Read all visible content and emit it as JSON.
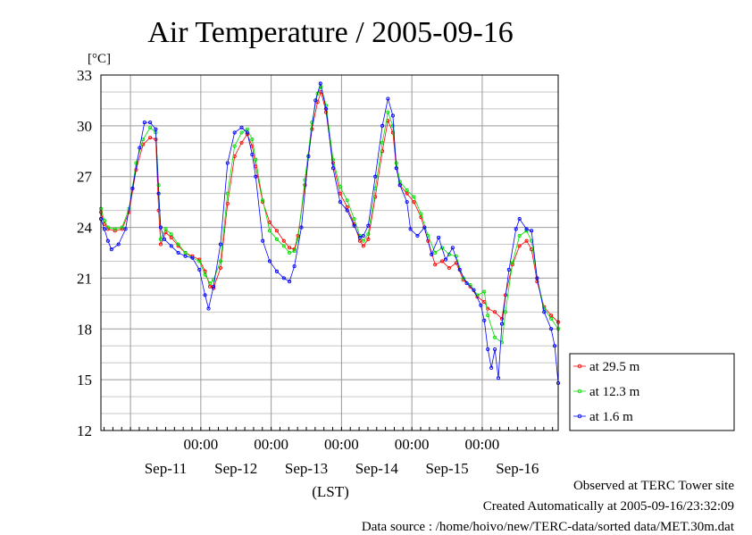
{
  "chart_data": {
    "type": "line",
    "title": "Air Temperature / 2005-09-16",
    "y_unit": "[°C]",
    "xlabel": "(LST)",
    "ylim": [
      12,
      33
    ],
    "yticks": [
      12,
      15,
      18,
      21,
      24,
      27,
      30,
      33
    ],
    "time_ticks": [
      "00:00",
      "00:00",
      "00:00",
      "00:00",
      "00:00"
    ],
    "date_labels": [
      "Sep-11",
      "Sep-12",
      "Sep-13",
      "Sep-14",
      "Sep-15",
      "Sep-16"
    ],
    "grid": true,
    "legend_position": "right",
    "x_unit": "days from start of window (start = 2005-09-10 ~14:00 LST)",
    "series": [
      {
        "name": "at 29.5 m",
        "color": "#ff0000",
        "points": [
          [
            0,
            24.9
          ],
          [
            0.05,
            24.2
          ],
          [
            0.1,
            23.9
          ],
          [
            0.2,
            23.8
          ],
          [
            0.3,
            23.9
          ],
          [
            0.4,
            24.9
          ],
          [
            0.5,
            27.4
          ],
          [
            0.6,
            28.9
          ],
          [
            0.7,
            29.3
          ],
          [
            0.78,
            29.2
          ],
          [
            0.82,
            25.0
          ],
          [
            0.85,
            23.0
          ],
          [
            0.92,
            23.7
          ],
          [
            1.0,
            23.4
          ],
          [
            1.1,
            22.9
          ],
          [
            1.2,
            22.5
          ],
          [
            1.3,
            22.3
          ],
          [
            1.4,
            22.1
          ],
          [
            1.48,
            21.4
          ],
          [
            1.55,
            20.5
          ],
          [
            1.6,
            20.4
          ],
          [
            1.7,
            21.6
          ],
          [
            1.8,
            25.4
          ],
          [
            1.9,
            28.2
          ],
          [
            2.0,
            29.0
          ],
          [
            2.08,
            29.5
          ],
          [
            2.15,
            28.8
          ],
          [
            2.2,
            27.6
          ],
          [
            2.3,
            25.5
          ],
          [
            2.4,
            24.3
          ],
          [
            2.5,
            23.8
          ],
          [
            2.6,
            23.2
          ],
          [
            2.68,
            22.8
          ],
          [
            2.75,
            22.7
          ],
          [
            2.8,
            23.5
          ],
          [
            2.9,
            26.5
          ],
          [
            3.0,
            29.8
          ],
          [
            3.08,
            31.4
          ],
          [
            3.13,
            32.0
          ],
          [
            3.2,
            30.8
          ],
          [
            3.3,
            27.8
          ],
          [
            3.4,
            26.0
          ],
          [
            3.5,
            25.2
          ],
          [
            3.6,
            24.2
          ],
          [
            3.68,
            23.2
          ],
          [
            3.73,
            22.9
          ],
          [
            3.8,
            23.3
          ],
          [
            3.9,
            25.8
          ],
          [
            4.0,
            28.5
          ],
          [
            4.08,
            30.3
          ],
          [
            4.15,
            29.6
          ],
          [
            4.2,
            27.5
          ],
          [
            4.25,
            26.5
          ],
          [
            4.35,
            26.0
          ],
          [
            4.45,
            25.5
          ],
          [
            4.55,
            24.6
          ],
          [
            4.65,
            23.2
          ],
          [
            4.75,
            21.8
          ],
          [
            4.85,
            22.0
          ],
          [
            4.95,
            21.6
          ],
          [
            5.05,
            21.9
          ],
          [
            5.15,
            20.9
          ],
          [
            5.25,
            20.5
          ],
          [
            5.35,
            19.9
          ],
          [
            5.45,
            19.6
          ],
          [
            5.5,
            19.2
          ],
          [
            5.6,
            19.0
          ],
          [
            5.7,
            18.6
          ],
          [
            5.75,
            20.0
          ],
          [
            5.85,
            21.8
          ],
          [
            5.95,
            22.9
          ],
          [
            6.05,
            23.2
          ],
          [
            6.12,
            22.7
          ],
          [
            6.2,
            20.8
          ],
          [
            6.3,
            19.3
          ],
          [
            6.4,
            18.8
          ],
          [
            6.5,
            18.4
          ]
        ]
      },
      {
        "name": "at 12.3 m",
        "color": "#00dd00",
        "points": [
          [
            0,
            25.1
          ],
          [
            0.05,
            24.4
          ],
          [
            0.1,
            24.0
          ],
          [
            0.2,
            23.9
          ],
          [
            0.3,
            24.0
          ],
          [
            0.4,
            25.1
          ],
          [
            0.5,
            27.8
          ],
          [
            0.6,
            29.2
          ],
          [
            0.7,
            29.9
          ],
          [
            0.78,
            29.6
          ],
          [
            0.82,
            26.5
          ],
          [
            0.85,
            23.3
          ],
          [
            0.92,
            23.9
          ],
          [
            1.0,
            23.6
          ],
          [
            1.1,
            23.0
          ],
          [
            1.2,
            22.5
          ],
          [
            1.3,
            22.2
          ],
          [
            1.4,
            22.0
          ],
          [
            1.48,
            21.2
          ],
          [
            1.55,
            20.7
          ],
          [
            1.6,
            20.9
          ],
          [
            1.7,
            22.0
          ],
          [
            1.8,
            26.0
          ],
          [
            1.9,
            28.8
          ],
          [
            2.0,
            29.6
          ],
          [
            2.08,
            29.8
          ],
          [
            2.15,
            29.2
          ],
          [
            2.2,
            28.0
          ],
          [
            2.3,
            25.6
          ],
          [
            2.4,
            23.8
          ],
          [
            2.5,
            23.3
          ],
          [
            2.6,
            22.9
          ],
          [
            2.68,
            22.5
          ],
          [
            2.75,
            22.6
          ],
          [
            2.8,
            23.3
          ],
          [
            2.9,
            26.8
          ],
          [
            3.0,
            30.2
          ],
          [
            3.08,
            31.9
          ],
          [
            3.13,
            32.3
          ],
          [
            3.2,
            31.2
          ],
          [
            3.3,
            28.0
          ],
          [
            3.4,
            26.4
          ],
          [
            3.5,
            25.6
          ],
          [
            3.6,
            24.5
          ],
          [
            3.68,
            23.5
          ],
          [
            3.73,
            23.2
          ],
          [
            3.8,
            23.6
          ],
          [
            3.9,
            26.3
          ],
          [
            4.0,
            29.0
          ],
          [
            4.08,
            30.8
          ],
          [
            4.15,
            30.0
          ],
          [
            4.2,
            27.8
          ],
          [
            4.25,
            26.7
          ],
          [
            4.35,
            26.2
          ],
          [
            4.45,
            25.8
          ],
          [
            4.55,
            24.8
          ],
          [
            4.65,
            23.5
          ],
          [
            4.75,
            22.5
          ],
          [
            4.85,
            22.8
          ],
          [
            4.95,
            22.4
          ],
          [
            5.05,
            22.3
          ],
          [
            5.15,
            21.0
          ],
          [
            5.25,
            20.6
          ],
          [
            5.35,
            20.0
          ],
          [
            5.45,
            20.2
          ],
          [
            5.5,
            18.8
          ],
          [
            5.6,
            17.5
          ],
          [
            5.7,
            17.2
          ],
          [
            5.75,
            19.0
          ],
          [
            5.85,
            21.9
          ],
          [
            5.95,
            23.5
          ],
          [
            6.05,
            23.8
          ],
          [
            6.12,
            23.2
          ],
          [
            6.2,
            21.0
          ],
          [
            6.3,
            19.2
          ],
          [
            6.4,
            18.6
          ],
          [
            6.5,
            18.0
          ]
        ]
      },
      {
        "name": "at 1.6 m",
        "color": "#0000ff",
        "points": [
          [
            0,
            24.5
          ],
          [
            0.05,
            23.9
          ],
          [
            0.1,
            23.2
          ],
          [
            0.15,
            22.7
          ],
          [
            0.25,
            23.0
          ],
          [
            0.35,
            23.9
          ],
          [
            0.45,
            26.3
          ],
          [
            0.55,
            28.7
          ],
          [
            0.62,
            30.2
          ],
          [
            0.7,
            30.2
          ],
          [
            0.78,
            29.8
          ],
          [
            0.82,
            26.0
          ],
          [
            0.85,
            24.0
          ],
          [
            0.9,
            23.3
          ],
          [
            1.0,
            22.9
          ],
          [
            1.1,
            22.5
          ],
          [
            1.2,
            22.3
          ],
          [
            1.3,
            22.2
          ],
          [
            1.4,
            21.5
          ],
          [
            1.48,
            20.0
          ],
          [
            1.53,
            19.2
          ],
          [
            1.6,
            20.5
          ],
          [
            1.7,
            23.0
          ],
          [
            1.8,
            27.8
          ],
          [
            1.9,
            29.6
          ],
          [
            2.0,
            29.9
          ],
          [
            2.08,
            29.6
          ],
          [
            2.15,
            28.3
          ],
          [
            2.2,
            27.0
          ],
          [
            2.3,
            23.2
          ],
          [
            2.4,
            22.0
          ],
          [
            2.5,
            21.4
          ],
          [
            2.6,
            21.0
          ],
          [
            2.68,
            20.8
          ],
          [
            2.75,
            21.7
          ],
          [
            2.85,
            24.0
          ],
          [
            2.95,
            28.2
          ],
          [
            3.05,
            31.5
          ],
          [
            3.12,
            32.5
          ],
          [
            3.2,
            31.0
          ],
          [
            3.3,
            27.5
          ],
          [
            3.4,
            25.5
          ],
          [
            3.5,
            25.0
          ],
          [
            3.6,
            24.1
          ],
          [
            3.68,
            23.4
          ],
          [
            3.73,
            23.5
          ],
          [
            3.8,
            24.1
          ],
          [
            3.9,
            27.0
          ],
          [
            4.0,
            30.0
          ],
          [
            4.08,
            31.6
          ],
          [
            4.15,
            30.6
          ],
          [
            4.2,
            27.5
          ],
          [
            4.25,
            26.5
          ],
          [
            4.35,
            25.5
          ],
          [
            4.4,
            23.9
          ],
          [
            4.5,
            23.5
          ],
          [
            4.6,
            24.0
          ],
          [
            4.7,
            22.4
          ],
          [
            4.8,
            23.4
          ],
          [
            4.9,
            22.1
          ],
          [
            5.0,
            22.8
          ],
          [
            5.1,
            21.5
          ],
          [
            5.2,
            20.7
          ],
          [
            5.3,
            20.3
          ],
          [
            5.4,
            19.4
          ],
          [
            5.45,
            18.5
          ],
          [
            5.5,
            16.8
          ],
          [
            5.55,
            15.7
          ],
          [
            5.6,
            16.8
          ],
          [
            5.65,
            15.1
          ],
          [
            5.7,
            18.3
          ],
          [
            5.8,
            21.5
          ],
          [
            5.9,
            23.9
          ],
          [
            5.95,
            24.5
          ],
          [
            6.05,
            23.9
          ],
          [
            6.12,
            23.8
          ],
          [
            6.2,
            21.0
          ],
          [
            6.3,
            19.0
          ],
          [
            6.4,
            18.0
          ],
          [
            6.45,
            17.0
          ],
          [
            6.5,
            14.8
          ]
        ]
      }
    ]
  },
  "footer": {
    "observed": "Observed at TERC Tower site",
    "created": "Created Automatically at 2005-09-16/23:32:09",
    "source": "Data source : /home/hoivo/new/TERC-data/sorted  data/MET.30m.dat"
  }
}
